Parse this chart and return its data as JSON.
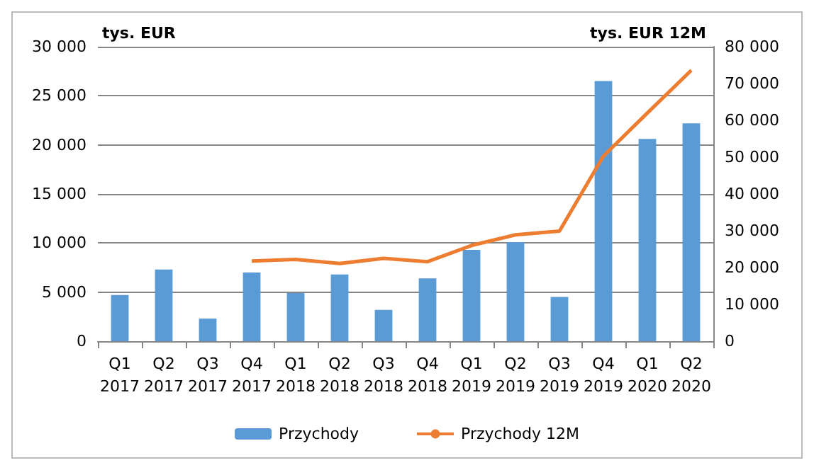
{
  "chart_data": {
    "type": "bar",
    "ylabel": "tys. EUR",
    "y2label": "tys. EUR 12M",
    "categories": [
      "Q1\n2017",
      "Q2\n2017",
      "Q3\n2017",
      "Q4\n2017",
      "Q1\n2018",
      "Q2\n2018",
      "Q3\n2018",
      "Q4\n2018",
      "Q1\n2019",
      "Q2\n2019",
      "Q3\n2019",
      "Q4\n2019",
      "Q1\n2020",
      "Q2\n2020"
    ],
    "series": [
      {
        "name": "Przychody",
        "color": "#5b9bd5",
        "values": [
          4700,
          7300,
          2300,
          7000,
          4900,
          6800,
          3200,
          6400,
          9300,
          10100,
          4500,
          26500,
          20600,
          22200
        ]
      },
      {
        "name": "Przychody 12M",
        "type": "line",
        "axis": "y2",
        "color": "#ed7d31",
        "values": [
          null,
          null,
          null,
          21800,
          22200,
          21100,
          22500,
          21600,
          26000,
          28900,
          29900,
          50300,
          62000,
          73600
        ]
      }
    ],
    "ylim": [
      0,
      30000
    ],
    "yticks": [
      0,
      5000,
      10000,
      15000,
      20000,
      25000,
      30000
    ],
    "y2lim": [
      0,
      80000
    ],
    "y2ticks": [
      0,
      10000,
      20000,
      30000,
      40000,
      50000,
      60000,
      70000,
      80000
    ],
    "grid": "y",
    "legend": "bottom",
    "marker": "none"
  }
}
